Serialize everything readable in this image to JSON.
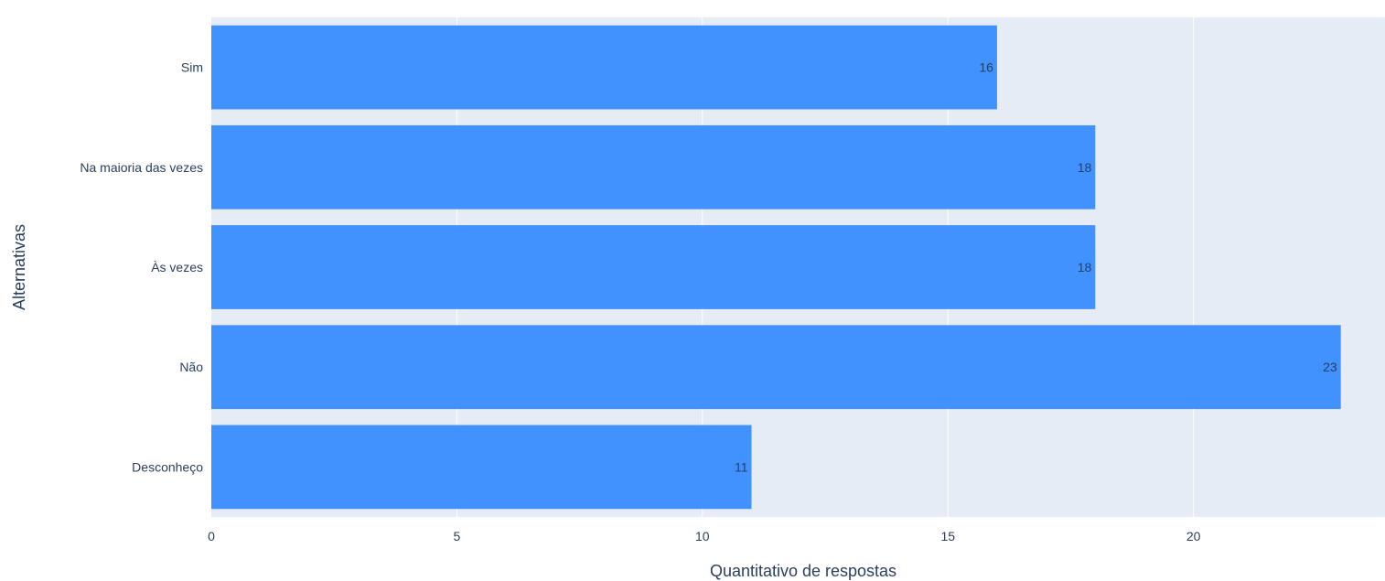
{
  "colors": {
    "plot_background": "#e5ecf6",
    "bar_fill": "#4191ff",
    "text": "#2a3f5f",
    "grid": "#ffffff"
  },
  "chart_data": {
    "type": "bar",
    "orientation": "horizontal",
    "categories": [
      "Sim",
      "Na maioria das vezes",
      "Às vezes",
      "Não",
      "Desconheço"
    ],
    "values": [
      16,
      18,
      18,
      23,
      11
    ],
    "data_labels": [
      "16",
      "18",
      "18",
      "23",
      "11"
    ],
    "xlabel": "Quantitativo de respostas",
    "ylabel": "Alternativas",
    "xlim": [
      0,
      23.9
    ],
    "xticks": [
      0,
      5,
      10,
      15,
      20
    ],
    "grid": true,
    "legend": false
  }
}
